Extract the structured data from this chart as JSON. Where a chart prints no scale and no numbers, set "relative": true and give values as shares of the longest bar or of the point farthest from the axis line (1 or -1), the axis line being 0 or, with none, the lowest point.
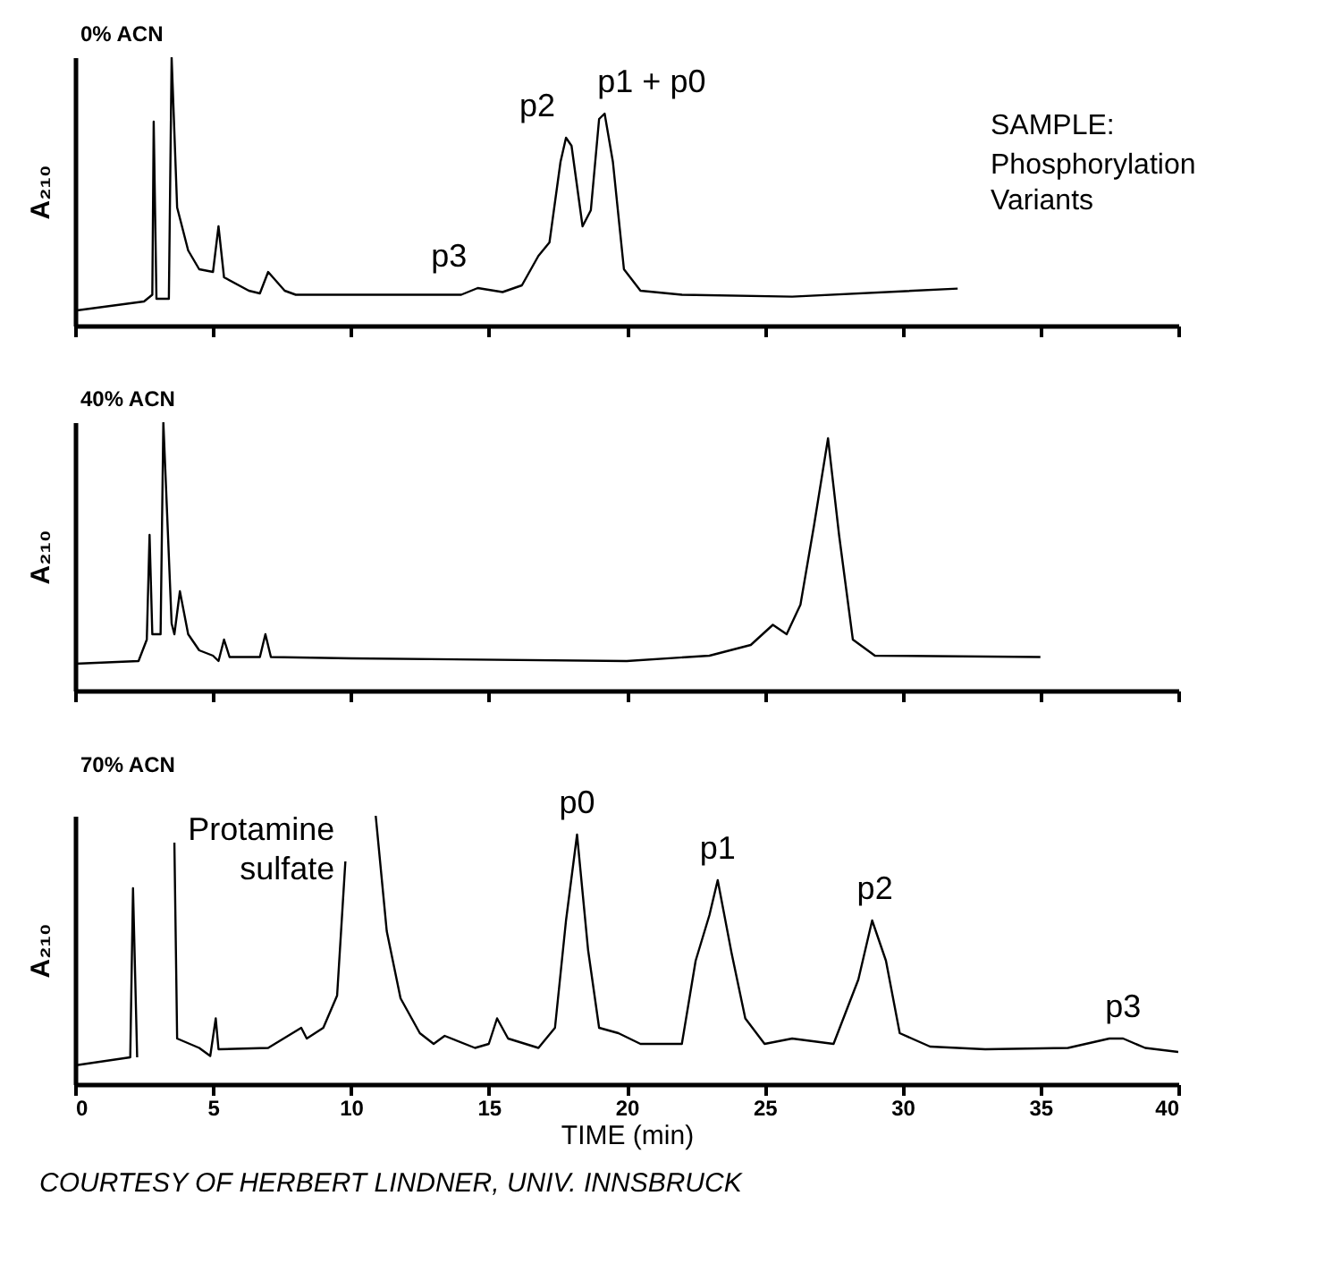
{
  "chart_data": [
    {
      "type": "line",
      "title": "0% ACN",
      "ylabel": "A₂₁₀",
      "relative": true,
      "xlim": [
        0,
        40
      ],
      "xticks": [
        0,
        5,
        10,
        15,
        20,
        25,
        30,
        35,
        40
      ],
      "tick_labels": false,
      "x": [
        0,
        2.5,
        2.8,
        2.85,
        2.95,
        3.4,
        3.5,
        3.7,
        4.1,
        4.5,
        5.0,
        5.2,
        5.4,
        6.3,
        6.7,
        7.0,
        7.6,
        8.0,
        10,
        14,
        14.6,
        15.5,
        16.2,
        16.8,
        17.2,
        17.6,
        17.8,
        18.0,
        18.4,
        18.7,
        19.0,
        19.2,
        19.5,
        19.9,
        20.5,
        22,
        26,
        32
      ],
      "series": [
        {
          "color": "#000000",
          "values": [
            0.056,
            0.09,
            0.115,
            0.76,
            0.1,
            0.1,
            1.0,
            0.44,
            0.28,
            0.21,
            0.2,
            0.37,
            0.18,
            0.13,
            0.12,
            0.2,
            0.13,
            0.115,
            0.115,
            0.115,
            0.14,
            0.125,
            0.15,
            0.26,
            0.31,
            0.61,
            0.7,
            0.67,
            0.37,
            0.43,
            0.77,
            0.79,
            0.61,
            0.21,
            0.13,
            0.115,
            0.108,
            0.138
          ]
        }
      ],
      "annotations": [
        {
          "text": "p3",
          "x": 14.6,
          "y": 0.14
        },
        {
          "text": "p2",
          "x": 17.8,
          "y": 0.7
        },
        {
          "text": "p1 + p0",
          "x": 19.2,
          "y": 0.79
        },
        "SAMPLE:",
        "Phosphorylation\nVariants"
      ]
    },
    {
      "type": "line",
      "title": "40% ACN",
      "ylabel": "A₂₁₀",
      "relative": true,
      "xlim": [
        0,
        40
      ],
      "xticks": [
        0,
        5,
        10,
        15,
        20,
        25,
        30,
        35,
        40
      ],
      "tick_labels": false,
      "x": [
        0,
        2.3,
        2.6,
        2.7,
        2.8,
        3.1,
        3.2,
        3.5,
        3.6,
        3.8,
        4.1,
        4.5,
        5.0,
        5.2,
        5.4,
        5.6,
        6.7,
        6.9,
        7.1,
        10,
        20,
        23,
        24.5,
        25.3,
        25.8,
        26.3,
        26.8,
        27.3,
        27.7,
        28.2,
        29,
        35
      ],
      "series": [
        {
          "color": "#000000",
          "values": [
            0.1,
            0.11,
            0.19,
            0.58,
            0.21,
            0.21,
            1.0,
            0.25,
            0.21,
            0.37,
            0.21,
            0.15,
            0.13,
            0.11,
            0.19,
            0.125,
            0.125,
            0.21,
            0.125,
            0.12,
            0.11,
            0.13,
            0.17,
            0.245,
            0.21,
            0.32,
            0.62,
            0.94,
            0.58,
            0.19,
            0.13,
            0.125
          ]
        }
      ]
    },
    {
      "type": "line",
      "title": "70% ACN",
      "ylabel": "A₂₁₀",
      "xlabel": "TIME (min)",
      "relative": true,
      "xlim": [
        0,
        40
      ],
      "xticks": [
        0,
        5,
        10,
        15,
        20,
        25,
        30,
        35,
        40
      ],
      "tick_labels": "x",
      "x": [
        0,
        2.0,
        2.1,
        2.25,
        2.8,
        3.6,
        3.7,
        4.5,
        4.9,
        5.1,
        5.2,
        7,
        8.2,
        8.4,
        9.0,
        9.5,
        9.8,
        10.1,
        10.9,
        11.3,
        11.8,
        12.5,
        13,
        13.4,
        14.5,
        15.0,
        15.3,
        15.7,
        16.8,
        17.4,
        17.8,
        18.2,
        18.6,
        19.0,
        19.7,
        20.5,
        22.0,
        22.5,
        23.0,
        23.3,
        23.8,
        24.3,
        25,
        26,
        27.5,
        28.4,
        28.9,
        29.4,
        29.9,
        31,
        33,
        36,
        37.5,
        38,
        38.8,
        40
      ],
      "series": [
        {
          "color": "#000000",
          "values": [
            0.07,
            0.1,
            0.73,
            0.1,
            null,
            0.9,
            0.17,
            0.135,
            0.105,
            0.245,
            0.13,
            0.135,
            0.21,
            0.17,
            0.21,
            0.33,
            0.83,
            null,
            1.0,
            0.57,
            0.32,
            0.19,
            0.15,
            0.18,
            0.135,
            0.15,
            0.245,
            0.17,
            0.135,
            0.21,
            0.61,
            0.93,
            0.5,
            0.21,
            0.19,
            0.15,
            0.15,
            0.46,
            0.63,
            0.76,
            0.49,
            0.245,
            0.15,
            0.17,
            0.15,
            0.39,
            0.61,
            0.46,
            0.19,
            0.14,
            0.13,
            0.135,
            0.17,
            0.17,
            0.135,
            0.12
          ]
        }
      ],
      "annotations": [
        {
          "text": "Protamine\nsulfate",
          "x": 9.8,
          "y": 0.83
        },
        {
          "text": "p0",
          "x": 18.2,
          "y": 0.93
        },
        {
          "text": "p1",
          "x": 23.3,
          "y": 0.76
        },
        {
          "text": "p2",
          "x": 29.0,
          "y": 0.61
        },
        {
          "text": "p3",
          "x": 38,
          "y": 0.17
        },
        "COURTESY OF HERBERT LINDNER, UNIV. INNSBRUCK"
      ]
    }
  ]
}
